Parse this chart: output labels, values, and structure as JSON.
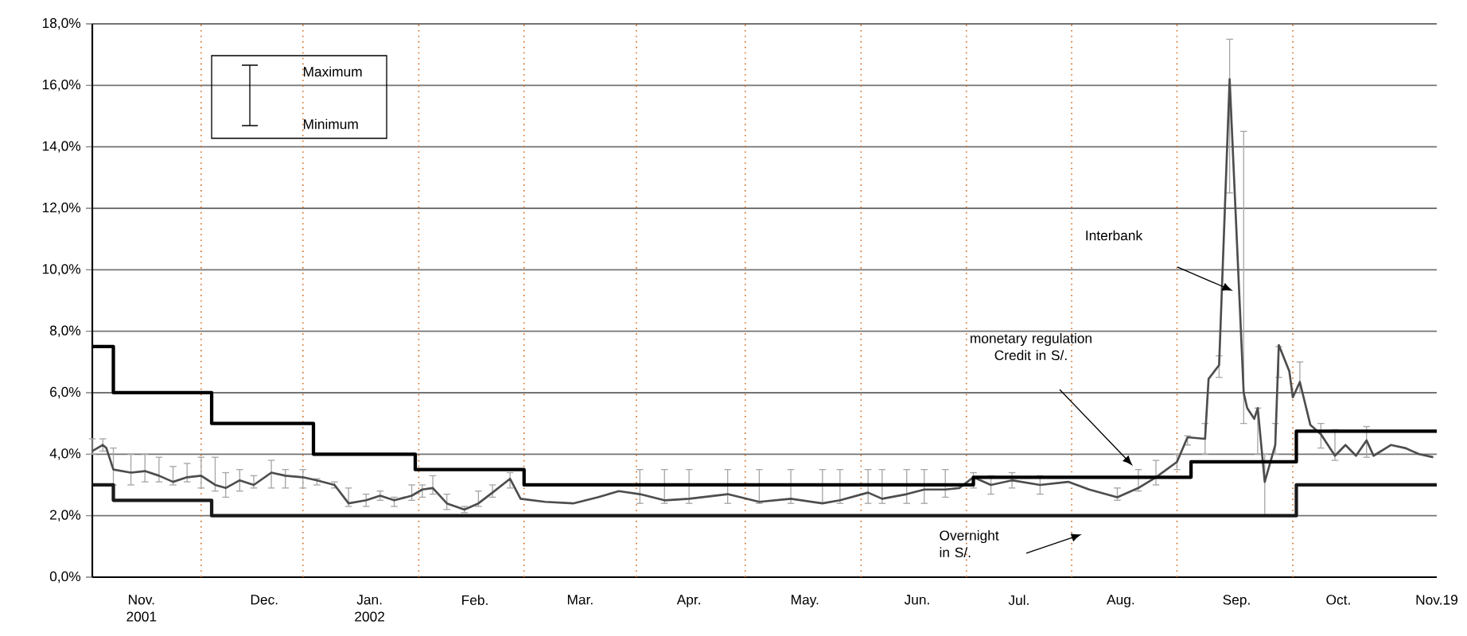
{
  "chart_data": {
    "type": "line",
    "xlim": [
      "2001-11-01",
      "2002-11-19"
    ],
    "ylim": [
      0,
      18
    ],
    "yticks": [
      {
        "value": 0,
        "label": "0,0%"
      },
      {
        "value": 2,
        "label": "2,0%"
      },
      {
        "value": 4,
        "label": "4,0%"
      },
      {
        "value": 6,
        "label": "6,0%"
      },
      {
        "value": 8,
        "label": "8,0%"
      },
      {
        "value": 10,
        "label": "10,0%"
      },
      {
        "value": 12,
        "label": "12,0%"
      },
      {
        "value": 14,
        "label": "14,0%"
      },
      {
        "value": 16,
        "label": "16,0%"
      },
      {
        "value": 18,
        "label": "18,0%"
      }
    ],
    "xticks": [
      {
        "value": "2001-11-15",
        "label": "Nov. 2001"
      },
      {
        "value": "2001-12-20",
        "label": "Dec."
      },
      {
        "value": "2002-01-19",
        "label": "Jan. 2002"
      },
      {
        "value": "2002-02-18",
        "label": "Feb."
      },
      {
        "value": "2002-03-20",
        "label": "Mar."
      },
      {
        "value": "2002-04-20",
        "label": "Apr."
      },
      {
        "value": "2002-05-23",
        "label": "May."
      },
      {
        "value": "2002-06-24",
        "label": "Jun."
      },
      {
        "value": "2002-07-23",
        "label": "Jul."
      },
      {
        "value": "2002-08-21",
        "label": "Aug."
      },
      {
        "value": "2002-09-23",
        "label": "Sep."
      },
      {
        "value": "2002-10-22",
        "label": "Oct."
      },
      {
        "value": "2002-11-19",
        "label": "Nov.19"
      }
    ],
    "grid": "y",
    "series": [
      {
        "type": "line",
        "color": "#4d4d4d",
        "x": [
          "2001-11-01",
          "2001-11-04",
          "2001-11-05",
          "2001-11-07",
          "2001-11-12",
          "2001-11-16",
          "2001-11-20",
          "2001-11-24",
          "2001-11-28",
          "2001-12-02",
          "2001-12-06",
          "2001-12-09",
          "2001-12-13",
          "2001-12-17",
          "2001-12-22",
          "2001-12-26",
          "2001-12-31",
          "2002-01-04",
          "2002-01-09",
          "2002-01-13",
          "2002-01-18",
          "2002-01-22",
          "2002-01-26",
          "2002-01-31",
          "2002-02-03",
          "2002-02-06",
          "2002-02-10",
          "2002-02-15",
          "2002-02-19",
          "2002-02-23",
          "2002-02-28",
          "2002-03-03",
          "2002-03-10",
          "2002-03-18",
          "2002-03-25",
          "2002-03-31",
          "2002-04-06",
          "2002-04-13",
          "2002-04-20",
          "2002-05-01",
          "2002-05-10",
          "2002-05-19",
          "2002-05-28",
          "2002-06-02",
          "2002-06-10",
          "2002-06-14",
          "2002-06-21",
          "2002-06-26",
          "2002-07-02",
          "2002-07-06",
          "2002-07-10",
          "2002-07-15",
          "2002-07-21",
          "2002-07-29",
          "2002-08-06",
          "2002-08-12",
          "2002-08-20",
          "2002-08-26",
          "2002-08-31",
          "2002-09-06",
          "2002-09-09",
          "2002-09-14",
          "2002-09-15",
          "2002-09-18",
          "2002-09-21",
          "2002-09-25",
          "2002-09-26",
          "2002-09-28",
          "2002-09-29",
          "2002-10-01",
          "2002-10-04",
          "2002-10-05",
          "2002-10-08",
          "2002-10-09",
          "2002-10-11",
          "2002-10-14",
          "2002-10-17",
          "2002-10-21",
          "2002-10-24",
          "2002-10-27",
          "2002-10-30",
          "2002-11-01",
          "2002-11-06",
          "2002-11-10",
          "2002-11-14",
          "2002-11-18"
        ],
        "values": [
          4.1,
          4.3,
          4.2,
          3.5,
          3.4,
          3.45,
          3.3,
          3.1,
          3.25,
          3.3,
          3.0,
          2.9,
          3.15,
          3.0,
          3.4,
          3.3,
          3.25,
          3.15,
          3.0,
          2.4,
          2.5,
          2.65,
          2.5,
          2.65,
          2.85,
          2.9,
          2.4,
          2.2,
          2.4,
          2.75,
          3.2,
          2.55,
          2.45,
          2.4,
          2.6,
          2.8,
          2.7,
          2.5,
          2.55,
          2.7,
          2.45,
          2.55,
          2.4,
          2.5,
          2.75,
          2.55,
          2.7,
          2.85,
          2.85,
          2.9,
          3.25,
          3.0,
          3.15,
          3.0,
          3.1,
          2.85,
          2.6,
          2.9,
          3.25,
          3.75,
          4.55,
          4.5,
          6.45,
          6.9,
          16.2,
          6.0,
          5.5,
          5.15,
          5.5,
          3.1,
          4.3,
          7.55,
          6.7,
          5.85,
          6.35,
          4.95,
          4.65,
          3.95,
          4.3,
          3.95,
          4.45,
          3.95,
          4.3,
          4.2,
          4.0,
          3.9
        ],
        "errors": [
          [
            4.0,
            4.5
          ],
          [
            4.1,
            4.5
          ],
          null,
          [
            3.0,
            4.2
          ],
          [
            3.0,
            4.0
          ],
          [
            3.1,
            4.0
          ],
          [
            3.1,
            3.9
          ],
          [
            3.0,
            3.6
          ],
          [
            3.1,
            3.7
          ],
          [
            2.9,
            3.9
          ],
          [
            2.8,
            3.9
          ],
          [
            2.6,
            3.4
          ],
          [
            2.8,
            3.5
          ],
          [
            2.9,
            3.3
          ],
          [
            2.9,
            3.8
          ],
          [
            2.9,
            3.5
          ],
          [
            2.9,
            3.5
          ],
          [
            3.0,
            3.2
          ],
          [
            2.9,
            3.1
          ],
          [
            2.3,
            2.9
          ],
          [
            2.3,
            2.7
          ],
          [
            2.5,
            2.8
          ],
          [
            2.3,
            2.6
          ],
          [
            2.5,
            3.0
          ],
          [
            2.6,
            3.0
          ],
          [
            2.7,
            3.3
          ],
          [
            2.2,
            2.7
          ],
          [
            2.1,
            2.3
          ],
          [
            2.3,
            2.8
          ],
          [
            2.6,
            3.0
          ],
          [
            2.9,
            3.4
          ],
          null,
          null,
          null,
          null,
          null,
          [
            2.4,
            3.5
          ],
          [
            2.4,
            3.5
          ],
          [
            2.4,
            3.5
          ],
          [
            2.4,
            3.5
          ],
          [
            2.4,
            3.5
          ],
          [
            2.4,
            3.5
          ],
          [
            2.4,
            3.5
          ],
          [
            2.4,
            3.5
          ],
          [
            2.4,
            3.5
          ],
          [
            2.4,
            3.5
          ],
          [
            2.4,
            3.5
          ],
          [
            2.4,
            3.5
          ],
          [
            2.6,
            3.5
          ],
          null,
          [
            2.9,
            3.4
          ],
          [
            2.7,
            3.3
          ],
          [
            2.9,
            3.4
          ],
          [
            2.7,
            3.3
          ],
          null,
          null,
          [
            2.5,
            2.9
          ],
          [
            2.8,
            3.5
          ],
          [
            3.0,
            3.8
          ],
          [
            3.5,
            4.0
          ],
          [
            4.3,
            4.6
          ],
          [
            4.0,
            5.0
          ],
          null,
          [
            6.5,
            7.2
          ],
          [
            12.5,
            17.5
          ],
          [
            5.0,
            14.5
          ],
          null,
          null,
          [
            4.0,
            5.5
          ],
          [
            2.0,
            4.0
          ],
          [
            4.0,
            5.0
          ],
          [
            6.5,
            7.5
          ],
          null,
          null,
          [
            6.0,
            7.0
          ],
          null,
          [
            4.2,
            5.0
          ],
          [
            3.8,
            4.8
          ],
          null,
          null,
          [
            3.9,
            4.9
          ],
          null,
          null,
          null,
          null,
          null
        ]
      },
      {
        "type": "step",
        "color": "#000000",
        "x": [
          "2001-11-01",
          "2001-11-07",
          "2001-12-05",
          "2002-01-03",
          "2002-02-01",
          "2002-03-04",
          "2002-07-10",
          "2002-09-10",
          "2002-10-10",
          "2002-11-19"
        ],
        "values": [
          7.5,
          6.0,
          5.0,
          4.0,
          3.5,
          3.0,
          3.25,
          3.75,
          4.75,
          4.75
        ]
      },
      {
        "type": "step",
        "color": "#1a1a1a",
        "x": [
          "2001-11-01",
          "2001-11-07",
          "2001-12-05",
          "2002-10-10",
          "2002-11-19"
        ],
        "values": [
          3.0,
          2.5,
          2.0,
          3.0,
          3.0
        ]
      }
    ],
    "ref_lines": [
      {
        "axis": "x",
        "value": "2001-12-02",
        "color": "#d2691e",
        "line_style": "dotted"
      },
      {
        "axis": "x",
        "value": "2001-12-31",
        "color": "#d2691e",
        "line_style": "dotted"
      },
      {
        "axis": "x",
        "value": "2002-02-02",
        "color": "#d2691e",
        "line_style": "dotted"
      },
      {
        "axis": "x",
        "value": "2002-03-04",
        "color": "#d2691e",
        "line_style": "dotted"
      },
      {
        "axis": "x",
        "value": "2002-04-05",
        "color": "#d2691e",
        "line_style": "dotted"
      },
      {
        "axis": "x",
        "value": "2002-05-06",
        "color": "#d2691e",
        "line_style": "dotted"
      },
      {
        "axis": "x",
        "value": "2002-06-08",
        "color": "#d2691e",
        "line_style": "dotted"
      },
      {
        "axis": "x",
        "value": "2002-07-08",
        "color": "#d2691e",
        "line_style": "dotted"
      },
      {
        "axis": "x",
        "value": "2002-08-07",
        "color": "#d2691e",
        "line_style": "dotted"
      },
      {
        "axis": "x",
        "value": "2002-09-06",
        "color": "#d2691e",
        "line_style": "dotted"
      },
      {
        "axis": "x",
        "value": "2002-10-09",
        "color": "#d2691e",
        "line_style": "dotted"
      }
    ],
    "annotations": [
      "Maximum",
      "Minimum",
      "Interbank",
      "monetary regulation Credit in S/.",
      "Overnight in S/."
    ]
  }
}
